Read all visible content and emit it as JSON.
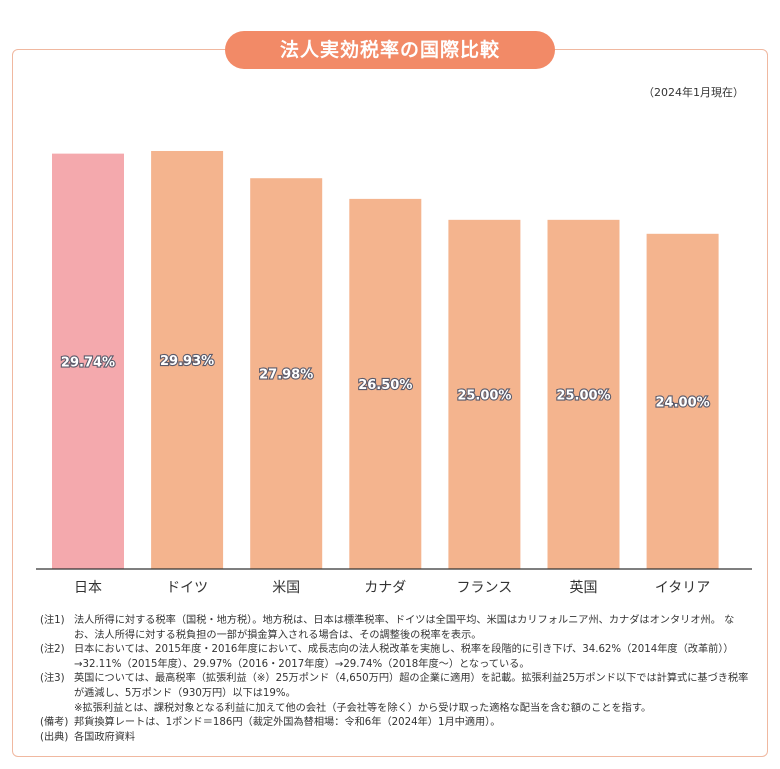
{
  "title": "法人実効税率の国際比較",
  "as_of": "（2024年1月現在）",
  "colors": {
    "japan_bar": "#f4a9ad",
    "other_bar": "#f4b48e",
    "title_bg": "#f28a67",
    "frame": "#f0b8a0"
  },
  "chart_data": {
    "type": "bar",
    "categories": [
      "日本",
      "ドイツ",
      "米国",
      "カナダ",
      "フランス",
      "英国",
      "イタリア"
    ],
    "values": [
      29.74,
      29.93,
      27.98,
      26.5,
      25.0,
      25.0,
      24.0
    ],
    "value_labels": [
      "29.74%",
      "29.93%",
      "27.98%",
      "26.50%",
      "25.00%",
      "25.00%",
      "24.00%"
    ],
    "ylim": [
      0,
      30
    ],
    "grid": false,
    "highlight_category": "日本"
  },
  "notes": [
    {
      "tag": "(注1)",
      "text": "法人所得に対する税率（国税・地方税）。地方税は、日本は標準税率、ドイツは全国平均、米国はカリフォルニア州、カナダはオンタリオ州。 なお、法人所得に対する税負担の一部が損金算入される場合は、その調整後の税率を表示。"
    },
    {
      "tag": "(注2)",
      "text": "日本においては、2015年度・2016年度において、成長志向の法人税改革を実施し、税率を段階的に引き下げ、34.62%（2014年度（改革前））→32.11%（2015年度）、29.97%（2016・2017年度）→29.74%（2018年度～）となっている。"
    },
    {
      "tag": "(注3)",
      "text": "英国については、最高税率（拡張利益（※）25万ポンド（4,650万円）超の企業に適用）を記載。拡張利益25万ポンド以下では計算式に基づき税率が逓減し、5万ポンド（930万円）以下は19%。"
    },
    {
      "tag": "",
      "text": "※拡張利益とは、課税対象となる利益に加えて他の会社（子会社等を除く）から受け取った適格な配当を含む額のことを指す。"
    },
    {
      "tag": "(備考)",
      "text": "邦貨換算レートは、1ポンド＝186円（裁定外国為替相場：令和6年（2024年）1月中適用）。"
    },
    {
      "tag": "(出典)",
      "text": "各国政府資料"
    }
  ]
}
